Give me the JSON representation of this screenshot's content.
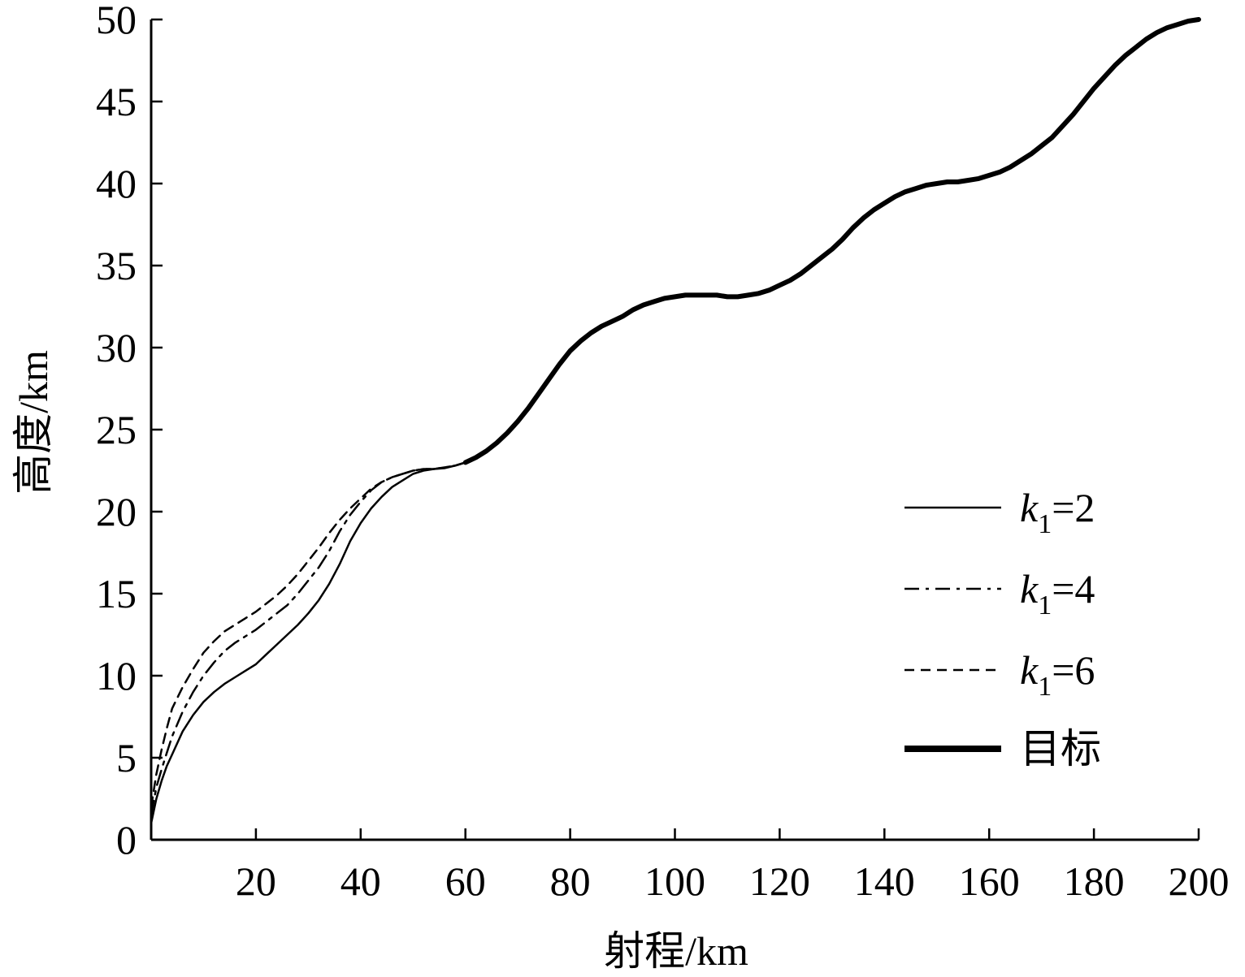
{
  "chart_data": {
    "type": "line",
    "xlabel": "射程/km",
    "ylabel": "高度/km",
    "xlim": [
      0,
      200
    ],
    "ylim": [
      0,
      50
    ],
    "xticks": [
      20,
      40,
      60,
      80,
      100,
      120,
      140,
      160,
      180,
      200
    ],
    "yticks": [
      0,
      5,
      10,
      15,
      20,
      25,
      30,
      35,
      40,
      45,
      50
    ],
    "grid": false,
    "legend_position": "lower-right",
    "series": [
      {
        "name": "k1=2",
        "name_parts": {
          "var": "k",
          "sub": "1",
          "rest": "=2"
        },
        "style": "solid",
        "x": [
          0,
          1,
          2,
          3,
          4,
          6,
          8,
          10,
          12,
          14,
          16,
          18,
          20,
          22,
          24,
          26,
          28,
          30,
          32,
          34,
          36,
          38,
          40,
          42,
          44,
          46,
          48,
          50,
          52,
          54,
          56,
          58,
          60
        ],
        "y": [
          1.0,
          2.5,
          3.6,
          4.5,
          5.2,
          6.6,
          7.6,
          8.4,
          9.0,
          9.5,
          9.9,
          10.3,
          10.7,
          11.3,
          11.9,
          12.5,
          13.1,
          13.8,
          14.6,
          15.6,
          16.8,
          18.2,
          19.3,
          20.2,
          20.9,
          21.5,
          21.9,
          22.3,
          22.5,
          22.6,
          22.65,
          22.8,
          23.0
        ]
      },
      {
        "name": "k1=4",
        "name_parts": {
          "var": "k",
          "sub": "1",
          "rest": "=4"
        },
        "style": "dashdot",
        "x": [
          0,
          1,
          2,
          3,
          4,
          6,
          8,
          10,
          12,
          14,
          16,
          18,
          20,
          22,
          24,
          26,
          28,
          30,
          32,
          34,
          36,
          38,
          40,
          42,
          44,
          46,
          48,
          50,
          52,
          54,
          56,
          58,
          60
        ],
        "y": [
          1.5,
          3.2,
          4.3,
          5.3,
          6.3,
          7.8,
          9.0,
          10.0,
          10.8,
          11.5,
          12.0,
          12.4,
          12.8,
          13.3,
          13.8,
          14.3,
          15.0,
          15.8,
          16.6,
          17.6,
          18.8,
          19.8,
          20.6,
          21.3,
          21.8,
          22.1,
          22.3,
          22.5,
          22.6,
          22.6,
          22.7,
          22.8,
          23.0
        ]
      },
      {
        "name": "k1=6",
        "name_parts": {
          "var": "k",
          "sub": "1",
          "rest": "=6"
        },
        "style": "dashed",
        "x": [
          0,
          1,
          2,
          3,
          4,
          6,
          8,
          10,
          12,
          14,
          16,
          18,
          20,
          22,
          24,
          26,
          28,
          30,
          32,
          34,
          36,
          38,
          40,
          42,
          44,
          46,
          48,
          50,
          52,
          54,
          56,
          58,
          60
        ],
        "y": [
          2.0,
          4.0,
          5.5,
          6.8,
          8.0,
          9.3,
          10.4,
          11.4,
          12.1,
          12.7,
          13.1,
          13.5,
          13.9,
          14.4,
          14.9,
          15.5,
          16.2,
          17.0,
          17.8,
          18.7,
          19.5,
          20.2,
          20.8,
          21.4,
          21.8,
          22.1,
          22.3,
          22.5,
          22.6,
          22.6,
          22.7,
          22.8,
          23.0
        ]
      },
      {
        "name": "目标",
        "style": "thick",
        "x": [
          60,
          62,
          64,
          66,
          68,
          70,
          72,
          74,
          76,
          78,
          80,
          82,
          84,
          86,
          88,
          90,
          92,
          94,
          96,
          98,
          100,
          102,
          104,
          106,
          108,
          110,
          112,
          114,
          116,
          118,
          120,
          122,
          124,
          126,
          128,
          130,
          132,
          134,
          136,
          138,
          140,
          142,
          144,
          146,
          148,
          150,
          152,
          154,
          156,
          158,
          160,
          162,
          164,
          166,
          168,
          170,
          172,
          174,
          176,
          178,
          180,
          182,
          184,
          186,
          188,
          190,
          192,
          194,
          196,
          198,
          200
        ],
        "y": [
          23.0,
          23.3,
          23.7,
          24.2,
          24.8,
          25.5,
          26.3,
          27.2,
          28.1,
          29.0,
          29.8,
          30.4,
          30.9,
          31.3,
          31.6,
          31.9,
          32.3,
          32.6,
          32.8,
          33.0,
          33.1,
          33.2,
          33.2,
          33.2,
          33.2,
          33.1,
          33.1,
          33.2,
          33.3,
          33.5,
          33.8,
          34.1,
          34.5,
          35.0,
          35.5,
          36.0,
          36.6,
          37.3,
          37.9,
          38.4,
          38.8,
          39.2,
          39.5,
          39.7,
          39.9,
          40.0,
          40.1,
          40.1,
          40.2,
          40.3,
          40.5,
          40.7,
          41.0,
          41.4,
          41.8,
          42.3,
          42.8,
          43.5,
          44.2,
          45.0,
          45.8,
          46.5,
          47.2,
          47.8,
          48.3,
          48.8,
          49.2,
          49.5,
          49.7,
          49.9,
          50.0
        ]
      }
    ]
  }
}
